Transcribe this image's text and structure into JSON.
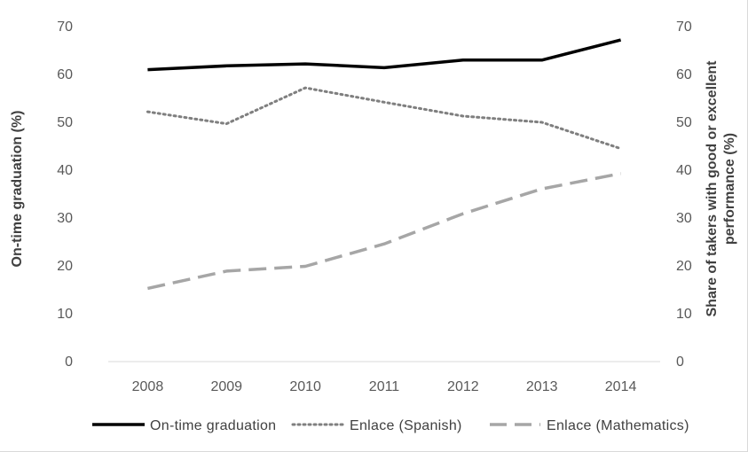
{
  "chart_data": {
    "type": "line",
    "categories": [
      "2008",
      "2009",
      "2010",
      "2011",
      "2012",
      "2013",
      "2014"
    ],
    "y_axis_left": {
      "label": "On-time graduation (%)",
      "ylim": [
        0,
        70
      ],
      "ticks": [
        "0",
        "10",
        "20",
        "30",
        "40",
        "50",
        "60",
        "70"
      ]
    },
    "y_axis_right": {
      "label_line1": "Share of takers with good or excellent",
      "label_line2": "performance (%)",
      "ylim": [
        0,
        70
      ],
      "ticks": [
        "0",
        "10",
        "20",
        "30",
        "40",
        "50",
        "60",
        "70"
      ]
    },
    "grid": false,
    "legend_position": "bottom",
    "series": [
      {
        "name": "On-time graduation",
        "axis": "left",
        "color": "#000000",
        "style": "solid",
        "values": [
          61.0,
          61.8,
          62.2,
          61.4,
          63.0,
          63.0,
          67.2
        ]
      },
      {
        "name": "Enlace (Spanish)",
        "axis": "right",
        "color": "#7f7f7f",
        "style": "dotted",
        "values": [
          52.2,
          49.7,
          57.2,
          54.2,
          51.3,
          50.0,
          44.5
        ]
      },
      {
        "name": "Enlace (Mathematics)",
        "axis": "right",
        "color": "#a6a6a6",
        "style": "dashed",
        "values": [
          15.3,
          18.9,
          19.9,
          24.6,
          30.9,
          36.1,
          39.3
        ]
      }
    ]
  }
}
